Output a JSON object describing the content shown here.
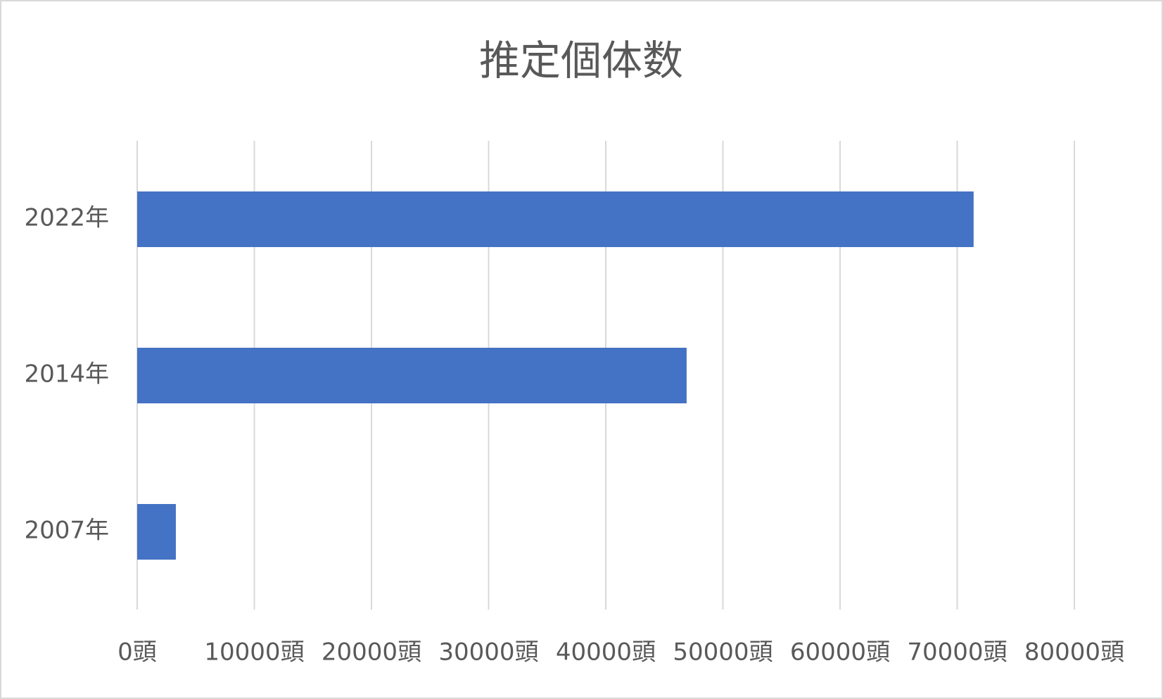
{
  "chart_data": {
    "type": "hbar",
    "title": "推定個体数",
    "categories": [
      "2007年",
      "2014年",
      "2022年"
    ],
    "values": [
      3300,
      46900,
      71400
    ],
    "color": "#4472c4",
    "xlim": [
      0,
      80000
    ],
    "xticks": [
      {
        "value": 0,
        "label": "0頭"
      },
      {
        "value": 10000,
        "label": "10000頭"
      },
      {
        "value": 20000,
        "label": "20000頭"
      },
      {
        "value": 30000,
        "label": "30000頭"
      },
      {
        "value": 40000,
        "label": "40000頭"
      },
      {
        "value": 50000,
        "label": "50000頭"
      },
      {
        "value": 60000,
        "label": "60000頭"
      },
      {
        "value": 70000,
        "label": "70000頭"
      },
      {
        "value": 80000,
        "label": "80000頭"
      }
    ],
    "grid": true
  }
}
